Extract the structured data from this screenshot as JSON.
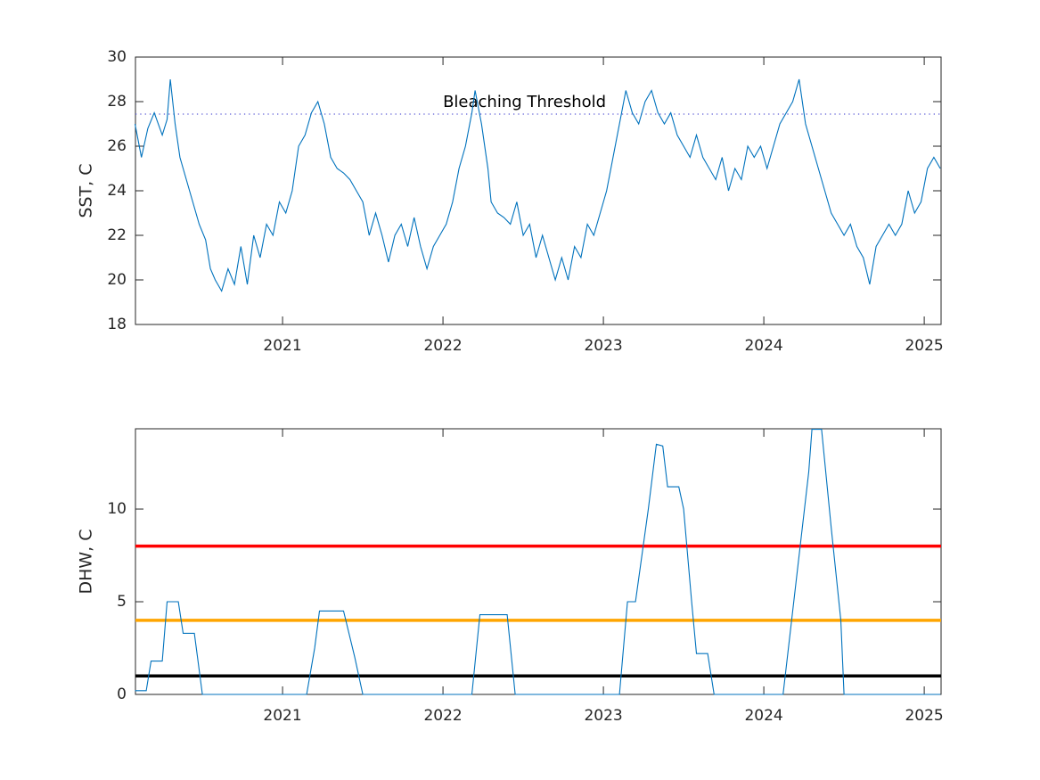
{
  "chart_data": [
    {
      "type": "line",
      "ylabel": "SST, C",
      "xlim": [
        2020.083,
        2025.105
      ],
      "xticks": [
        2021,
        2022,
        2023,
        2024,
        2025
      ],
      "ylim": [
        18,
        30
      ],
      "yticks": [
        18,
        20,
        22,
        24,
        26,
        28,
        30
      ],
      "series": [
        {
          "color": "#0072bd",
          "x": [
            2020.08,
            2020.12,
            2020.16,
            2020.2,
            2020.25,
            2020.28,
            2020.3,
            2020.33,
            2020.36,
            2020.4,
            2020.44,
            2020.48,
            2020.52,
            2020.55,
            2020.58,
            2020.62,
            2020.66,
            2020.7,
            2020.74,
            2020.78,
            2020.82,
            2020.86,
            2020.9,
            2020.94,
            2020.98,
            2021.02,
            2021.06,
            2021.1,
            2021.14,
            2021.18,
            2021.22,
            2021.26,
            2021.3,
            2021.34,
            2021.38,
            2021.42,
            2021.46,
            2021.5,
            2021.54,
            2021.58,
            2021.62,
            2021.66,
            2021.7,
            2021.74,
            2021.78,
            2021.82,
            2021.86,
            2021.9,
            2021.94,
            2021.98,
            2022.02,
            2022.06,
            2022.1,
            2022.14,
            2022.18,
            2022.2,
            2022.24,
            2022.28,
            2022.3,
            2022.34,
            2022.38,
            2022.42,
            2022.46,
            2022.5,
            2022.54,
            2022.58,
            2022.62,
            2022.66,
            2022.7,
            2022.74,
            2022.78,
            2022.82,
            2022.86,
            2022.9,
            2022.94,
            2022.98,
            2023.02,
            2023.06,
            2023.1,
            2023.14,
            2023.18,
            2023.22,
            2023.26,
            2023.3,
            2023.34,
            2023.38,
            2023.42,
            2023.46,
            2023.5,
            2023.54,
            2023.58,
            2023.62,
            2023.66,
            2023.7,
            2023.74,
            2023.78,
            2023.82,
            2023.86,
            2023.9,
            2023.94,
            2023.98,
            2024.02,
            2024.06,
            2024.1,
            2024.14,
            2024.18,
            2024.22,
            2024.26,
            2024.3,
            2024.34,
            2024.38,
            2024.42,
            2024.46,
            2024.5,
            2024.54,
            2024.58,
            2024.62,
            2024.66,
            2024.7,
            2024.74,
            2024.78,
            2024.82,
            2024.86,
            2024.9,
            2024.94,
            2024.98,
            2025.02,
            2025.06,
            2025.1
          ],
          "values": [
            27.0,
            25.5,
            26.8,
            27.5,
            26.5,
            27.2,
            29.0,
            27.0,
            25.5,
            24.5,
            23.5,
            22.5,
            21.8,
            20.5,
            20.0,
            19.5,
            20.5,
            19.8,
            21.5,
            19.8,
            22.0,
            21.0,
            22.5,
            22.0,
            23.5,
            23.0,
            24.0,
            26.0,
            26.5,
            27.5,
            28.0,
            27.0,
            25.5,
            25.0,
            24.8,
            24.5,
            24.0,
            23.5,
            22.0,
            23.0,
            22.0,
            20.8,
            22.0,
            22.5,
            21.5,
            22.8,
            21.5,
            20.5,
            21.5,
            22.0,
            22.5,
            23.5,
            25.0,
            26.0,
            27.5,
            28.5,
            27.0,
            25.0,
            23.5,
            23.0,
            22.8,
            22.5,
            23.5,
            22.0,
            22.5,
            21.0,
            22.0,
            21.0,
            20.0,
            21.0,
            20.0,
            21.5,
            21.0,
            22.5,
            22.0,
            23.0,
            24.0,
            25.5,
            27.0,
            28.5,
            27.5,
            27.0,
            28.0,
            28.5,
            27.5,
            27.0,
            27.5,
            26.5,
            26.0,
            25.5,
            26.5,
            25.5,
            25.0,
            24.5,
            25.5,
            24.0,
            25.0,
            24.5,
            26.0,
            25.5,
            26.0,
            25.0,
            26.0,
            27.0,
            27.5,
            28.0,
            29.0,
            27.0,
            26.0,
            25.0,
            24.0,
            23.0,
            22.5,
            22.0,
            22.5,
            21.5,
            21.0,
            19.8,
            21.5,
            22.0,
            22.5,
            22.0,
            22.5,
            24.0,
            23.0,
            23.5,
            25.0,
            25.5,
            25.0
          ]
        }
      ],
      "hlines": [
        {
          "value": 27.44,
          "color": "#5b5bd6",
          "style": "dotted",
          "label": "Bleaching Threshold"
        }
      ]
    },
    {
      "type": "line",
      "ylabel": "DHW, C",
      "xlim": [
        2020.083,
        2025.105
      ],
      "xticks": [
        2021,
        2022,
        2023,
        2024,
        2025
      ],
      "ylim": [
        0,
        14.33
      ],
      "yticks": [
        0,
        5,
        10
      ],
      "series": [
        {
          "color": "#0072bd",
          "x": [
            2020.08,
            2020.15,
            2020.18,
            2020.25,
            2020.28,
            2020.35,
            2020.38,
            2020.45,
            2020.5,
            2021.15,
            2021.2,
            2021.23,
            2021.38,
            2021.45,
            2021.5,
            2022.18,
            2022.23,
            2022.4,
            2022.45,
            2023.1,
            2023.15,
            2023.2,
            2023.28,
            2023.33,
            2023.37,
            2023.4,
            2023.47,
            2023.5,
            2023.55,
            2023.58,
            2023.65,
            2023.69,
            2024.12,
            2024.2,
            2024.28,
            2024.3,
            2024.36,
            2024.42,
            2024.48,
            2024.5,
            2025.1
          ],
          "values": [
            0.2,
            0.2,
            1.8,
            1.8,
            5.0,
            5.0,
            3.3,
            3.3,
            0,
            0,
            2.5,
            4.5,
            4.5,
            2.0,
            0,
            0,
            4.3,
            4.3,
            0,
            0,
            5.0,
            5.0,
            10,
            13.5,
            13.4,
            11.2,
            11.2,
            10.0,
            5,
            2.2,
            2.2,
            0,
            0,
            6,
            12,
            14.3,
            14.3,
            9,
            4,
            0,
            0
          ]
        }
      ],
      "hlines": [
        {
          "value": 1,
          "color": "#000000",
          "style": "solid"
        },
        {
          "value": 4,
          "color": "#ffa500",
          "style": "solid"
        },
        {
          "value": 8,
          "color": "#ff0000",
          "style": "solid"
        }
      ]
    }
  ]
}
